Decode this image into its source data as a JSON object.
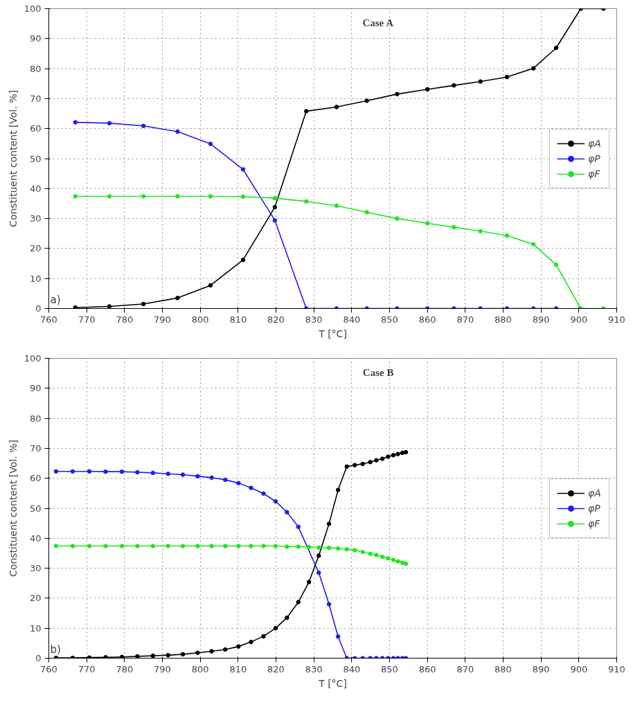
{
  "chart_data": [
    {
      "type": "line",
      "title": "Case A",
      "xlabel": "T [°C]",
      "ylabel": "Constituent content [Vol. %]",
      "annotations": [
        "a)"
      ],
      "xlim": [
        760,
        910
      ],
      "xticks": [
        760,
        770,
        780,
        790,
        800,
        810,
        820,
        830,
        840,
        850,
        860,
        870,
        880,
        890,
        900,
        910
      ],
      "ylim": [
        0,
        100
      ],
      "yticks": [
        0,
        10,
        20,
        30,
        40,
        50,
        60,
        70,
        80,
        90,
        100
      ],
      "grid": true,
      "legend": "right",
      "marker": "circle",
      "line_style": "solid",
      "x": [
        767,
        776,
        785,
        794,
        802.7,
        811.3,
        819.7,
        828,
        836,
        844,
        852,
        860,
        867,
        874,
        881,
        888,
        894,
        900.5,
        906.5
      ],
      "series": [
        {
          "name": "φA",
          "color": "#000000",
          "values": [
            0.3,
            0.7,
            1.5,
            3.5,
            7.7,
            16.2,
            33.8,
            65.8,
            67.2,
            69.3,
            71.5,
            73.1,
            74.4,
            75.7,
            77.2,
            80.1,
            86.9,
            100,
            100
          ]
        },
        {
          "name": "φP",
          "color": "#1f1fe6",
          "values": [
            62.1,
            61.8,
            60.9,
            59.0,
            54.9,
            46.4,
            29.4,
            0,
            0,
            0,
            0,
            0,
            0,
            0,
            0,
            0,
            0,
            null,
            null
          ]
        },
        {
          "name": "φF",
          "color": "#22e622",
          "values": [
            37.4,
            37.4,
            37.4,
            37.4,
            37.4,
            37.3,
            36.8,
            35.7,
            34.3,
            32.1,
            30.0,
            28.4,
            27.1,
            25.8,
            24.3,
            21.4,
            14.6,
            0,
            0
          ]
        }
      ]
    },
    {
      "type": "line",
      "title": "Case B",
      "xlabel": "T [°C]",
      "ylabel": "Constituent content [Vol. %]",
      "annotations": [
        "b)"
      ],
      "xlim": [
        760,
        910
      ],
      "xticks": [
        760,
        770,
        780,
        790,
        800,
        810,
        820,
        830,
        840,
        850,
        860,
        870,
        880,
        890,
        900,
        910
      ],
      "ylim": [
        0,
        100
      ],
      "yticks": [
        0,
        10,
        20,
        30,
        40,
        50,
        60,
        70,
        80,
        90,
        100
      ],
      "grid": true,
      "legend": "right",
      "marker": "circle",
      "line_style": "solid",
      "x": [
        761.9,
        766.3,
        770.7,
        775,
        779.3,
        783.4,
        787.5,
        791.5,
        795.4,
        799.3,
        803,
        806.6,
        810.1,
        813.4,
        816.7,
        819.9,
        822.9,
        825.9,
        828.7,
        831.3,
        834,
        836.4,
        838.7,
        840.8,
        842.9,
        844.9,
        846.5,
        848.1,
        849.6,
        851,
        852.2,
        853.4,
        854.3
      ],
      "series": [
        {
          "name": "φA",
          "color": "#000000",
          "values": [
            0.1,
            0.1,
            0.2,
            0.3,
            0.4,
            0.6,
            0.8,
            1.0,
            1.3,
            1.8,
            2.3,
            2.9,
            3.9,
            5.4,
            7.3,
            10.0,
            13.5,
            18.7,
            25.4,
            34.2,
            44.8,
            56.1,
            63.9,
            64.4,
            64.8,
            65.4,
            66.0,
            66.5,
            67.2,
            67.7,
            68.1,
            68.5,
            68.7
          ]
        },
        {
          "name": "φP",
          "color": "#1f1fe6",
          "x": [
            761.9,
            766.3,
            770.7,
            775,
            779.3,
            783.4,
            787.5,
            791.5,
            795.4,
            799.3,
            803,
            806.6,
            810.1,
            813.4,
            816.7,
            819.9,
            822.9,
            825.9,
            831.3,
            834,
            836.4,
            838.7,
            840.8,
            842.9,
            844.9,
            846.5,
            848.1,
            849.6,
            851,
            852.2,
            853.4,
            854.3
          ],
          "values": [
            62.3,
            62.3,
            62.3,
            62.2,
            62.2,
            62.0,
            61.8,
            61.5,
            61.2,
            60.7,
            60.2,
            59.5,
            58.4,
            56.8,
            54.9,
            52.3,
            48.7,
            43.8,
            28.5,
            18.0,
            7.2,
            0,
            0,
            0,
            0,
            0,
            0,
            0,
            0,
            0,
            0,
            0
          ]
        },
        {
          "name": "φF",
          "color": "#22e622",
          "values": [
            37.4,
            37.4,
            37.4,
            37.4,
            37.4,
            37.4,
            37.4,
            37.4,
            37.4,
            37.4,
            37.4,
            37.4,
            37.4,
            37.4,
            37.4,
            37.4,
            37.2,
            37.2,
            37.1,
            36.9,
            36.8,
            36.6,
            36.3,
            36.0,
            35.4,
            34.8,
            34.4,
            33.8,
            33.3,
            32.8,
            32.3,
            31.8,
            31.5
          ]
        }
      ]
    }
  ]
}
